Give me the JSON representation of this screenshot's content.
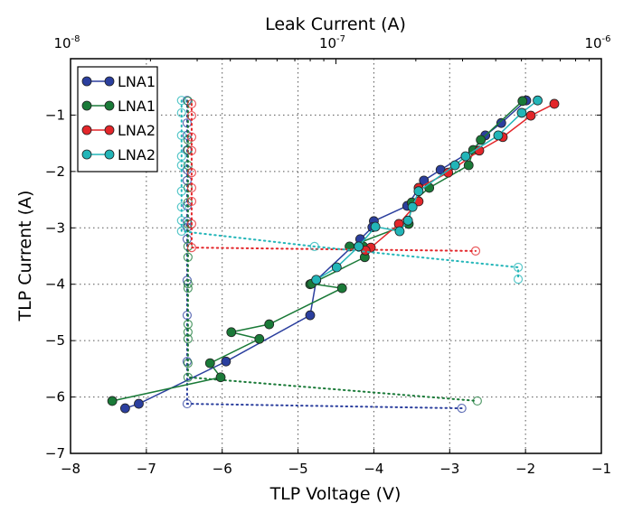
{
  "chart_data": {
    "type": "scatter",
    "title": "",
    "xlabel": "TLP Voltage (V)",
    "ylabel": "TLP Current (A)",
    "top_xlabel": "Leak Current (A)",
    "xlim": [
      -8,
      -1
    ],
    "ylim": [
      -7,
      0
    ],
    "top_xlim_log10": [
      -8,
      -6
    ],
    "x_ticks": [
      "−8",
      "−7",
      "−6",
      "−5",
      "−4",
      "−3",
      "−2",
      "−1"
    ],
    "x_tick_values": [
      -8,
      -7,
      -6,
      -5,
      -4,
      -3,
      -2,
      -1
    ],
    "y_ticks": [
      "−1",
      "−2",
      "−3",
      "−4",
      "−5",
      "−6",
      "−7"
    ],
    "y_tick_values": [
      -1,
      -2,
      -3,
      -4,
      -5,
      -6,
      -7
    ],
    "top_ticks": [
      {
        "base": "10",
        "exp": "-8",
        "log10": -8
      },
      {
        "base": "10",
        "exp": "-7",
        "log10": -7
      },
      {
        "base": "10",
        "exp": "-6",
        "log10": -6
      }
    ],
    "grid": true,
    "legend_position": "top-left",
    "legend": [
      "LNA1",
      "LNA1",
      "LNA2",
      "LNA2"
    ],
    "series": [
      {
        "name": "LNA1",
        "color": "#2b3f9e",
        "tlp": [
          [
            -1.99,
            -0.74
          ],
          [
            -2.32,
            -1.14
          ],
          [
            -2.53,
            -1.36
          ],
          [
            -2.69,
            -1.62
          ],
          [
            -3.12,
            -1.97
          ],
          [
            -3.34,
            -2.16
          ],
          [
            -3.56,
            -2.61
          ],
          [
            -4.0,
            -2.88
          ],
          [
            -4.02,
            -2.99
          ],
          [
            -4.18,
            -3.2
          ],
          [
            -4.76,
            -3.93
          ],
          [
            -4.84,
            -4.55
          ],
          [
            -5.95,
            -5.37
          ],
          [
            -7.1,
            -6.12
          ],
          [
            -7.28,
            -6.2
          ]
        ],
        "leak": [
          [
            2.75e-08,
            -0.74
          ],
          [
            2.75e-08,
            -1.14
          ],
          [
            2.75e-08,
            -1.36
          ],
          [
            2.75e-08,
            -1.62
          ],
          [
            2.75e-08,
            -1.97
          ],
          [
            2.75e-08,
            -2.16
          ],
          [
            2.75e-08,
            -2.61
          ],
          [
            2.75e-08,
            -2.88
          ],
          [
            2.75e-08,
            -2.99
          ],
          [
            2.75e-08,
            -3.2
          ],
          [
            2.75e-08,
            -3.93
          ],
          [
            2.75e-08,
            -4.55
          ],
          [
            2.75e-08,
            -5.37
          ],
          [
            2.75e-08,
            -6.12
          ],
          [
            2.98e-07,
            -6.2
          ]
        ]
      },
      {
        "name": "LNA1",
        "color": "#1a7a38",
        "tlp": [
          [
            -2.04,
            -0.75
          ],
          [
            -2.59,
            -1.44
          ],
          [
            -2.69,
            -1.62
          ],
          [
            -2.75,
            -1.89
          ],
          [
            -3.27,
            -2.29
          ],
          [
            -3.5,
            -2.55
          ],
          [
            -3.54,
            -2.93
          ],
          [
            -4.32,
            -3.33
          ],
          [
            -4.14,
            -3.33
          ],
          [
            -4.12,
            -3.52
          ],
          [
            -4.84,
            -4.0
          ],
          [
            -4.82,
            -3.99
          ],
          [
            -4.42,
            -4.07
          ],
          [
            -5.38,
            -4.71
          ],
          [
            -5.88,
            -4.85
          ],
          [
            -5.51,
            -4.97
          ],
          [
            -6.16,
            -5.4
          ],
          [
            -6.02,
            -5.65
          ],
          [
            -7.45,
            -6.07
          ]
        ],
        "leak": [
          [
            2.77e-08,
            -0.75
          ],
          [
            2.77e-08,
            -1.44
          ],
          [
            2.77e-08,
            -1.62
          ],
          [
            2.77e-08,
            -1.89
          ],
          [
            2.77e-08,
            -2.29
          ],
          [
            2.77e-08,
            -2.55
          ],
          [
            2.77e-08,
            -2.93
          ],
          [
            2.77e-08,
            -3.33
          ],
          [
            2.77e-08,
            -3.52
          ],
          [
            2.77e-08,
            -3.99
          ],
          [
            2.77e-08,
            -4.07
          ],
          [
            2.77e-08,
            -4.71
          ],
          [
            2.77e-08,
            -4.85
          ],
          [
            2.77e-08,
            -4.97
          ],
          [
            2.77e-08,
            -5.4
          ],
          [
            2.77e-08,
            -5.65
          ],
          [
            3.41e-07,
            -6.07
          ]
        ]
      },
      {
        "name": "LNA2",
        "color": "#e3262a",
        "tlp": [
          [
            -1.62,
            -0.8
          ],
          [
            -1.93,
            -1.01
          ],
          [
            -2.3,
            -1.39
          ],
          [
            -2.61,
            -1.63
          ],
          [
            -3.02,
            -2.02
          ],
          [
            -3.41,
            -2.29
          ],
          [
            -3.41,
            -2.53
          ],
          [
            -3.67,
            -2.93
          ],
          [
            -4.04,
            -3.35
          ],
          [
            -4.11,
            -3.4
          ]
        ],
        "leak": [
          [
            2.86e-08,
            -0.8
          ],
          [
            2.86e-08,
            -1.01
          ],
          [
            2.86e-08,
            -1.39
          ],
          [
            2.86e-08,
            -1.63
          ],
          [
            2.86e-08,
            -2.02
          ],
          [
            2.86e-08,
            -2.29
          ],
          [
            2.86e-08,
            -2.53
          ],
          [
            2.86e-08,
            -2.93
          ],
          [
            2.86e-08,
            -3.35
          ],
          [
            3.36e-07,
            -3.41
          ]
        ]
      },
      {
        "name": "LNA2",
        "color": "#22b5b8",
        "tlp": [
          [
            -1.84,
            -0.74
          ],
          [
            -2.05,
            -0.96
          ],
          [
            -2.36,
            -1.36
          ],
          [
            -2.79,
            -1.73
          ],
          [
            -2.93,
            -1.89
          ],
          [
            -3.41,
            -2.35
          ],
          [
            -3.49,
            -2.63
          ],
          [
            -3.55,
            -2.87
          ],
          [
            -3.66,
            -3.06
          ],
          [
            -3.98,
            -2.98
          ],
          [
            -4.2,
            -3.33
          ],
          [
            -4.49,
            -3.7
          ],
          [
            -4.76,
            -3.92
          ]
        ],
        "leak": [
          [
            2.62e-08,
            -0.74
          ],
          [
            2.62e-08,
            -0.96
          ],
          [
            2.62e-08,
            -1.36
          ],
          [
            2.62e-08,
            -1.73
          ],
          [
            2.62e-08,
            -1.89
          ],
          [
            2.62e-08,
            -2.35
          ],
          [
            2.62e-08,
            -2.63
          ],
          [
            2.62e-08,
            -2.87
          ],
          [
            2.62e-08,
            -3.06
          ],
          [
            8.3e-08,
            -3.33
          ],
          [
            4.86e-07,
            -3.7
          ],
          [
            4.86e-07,
            -3.91
          ]
        ]
      }
    ]
  }
}
